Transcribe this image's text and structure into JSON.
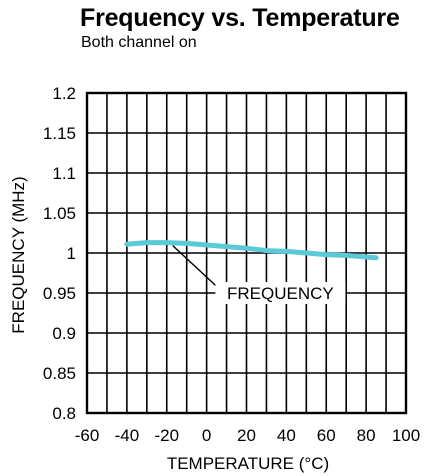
{
  "chart_data": {
    "type": "line",
    "title": "Frequency vs. Temperature",
    "subtitle": "Both channel on",
    "xlabel": "TEMPERATURE (°C)",
    "ylabel": "FREQUENCY (MHz)",
    "xlim": [
      -60,
      100
    ],
    "ylim": [
      0.8,
      1.2
    ],
    "x_ticks": [
      -60,
      -40,
      -20,
      0,
      20,
      40,
      60,
      80,
      100
    ],
    "x_tick_labels": [
      "-60",
      "-40",
      "-20",
      "0",
      "20",
      "40",
      "60",
      "80",
      "100"
    ],
    "y_ticks": [
      0.8,
      0.85,
      0.9,
      0.95,
      1.0,
      1.05,
      1.1,
      1.15,
      1.2
    ],
    "y_tick_labels": [
      "0.8",
      "0.85",
      "0.9",
      "0.95",
      "1",
      "1.05",
      "1.1",
      "1.15",
      "1.2"
    ],
    "x_minor_step": 10,
    "y_minor_step": 0.05,
    "grid": true,
    "series": [
      {
        "name": "FREQUENCY",
        "color": "#5ccad6",
        "x": [
          -40,
          -30,
          -20,
          -10,
          0,
          10,
          20,
          30,
          40,
          50,
          60,
          70,
          80,
          85
        ],
        "y": [
          1.011,
          1.013,
          1.013,
          1.012,
          1.01,
          1.008,
          1.006,
          1.003,
          1.002,
          1.0,
          0.998,
          0.997,
          0.995,
          0.994
        ]
      }
    ],
    "annotations": [
      {
        "text": "FREQUENCY",
        "x": 37,
        "y": 0.95,
        "target_x": -17,
        "target_y": 1.013
      }
    ]
  }
}
